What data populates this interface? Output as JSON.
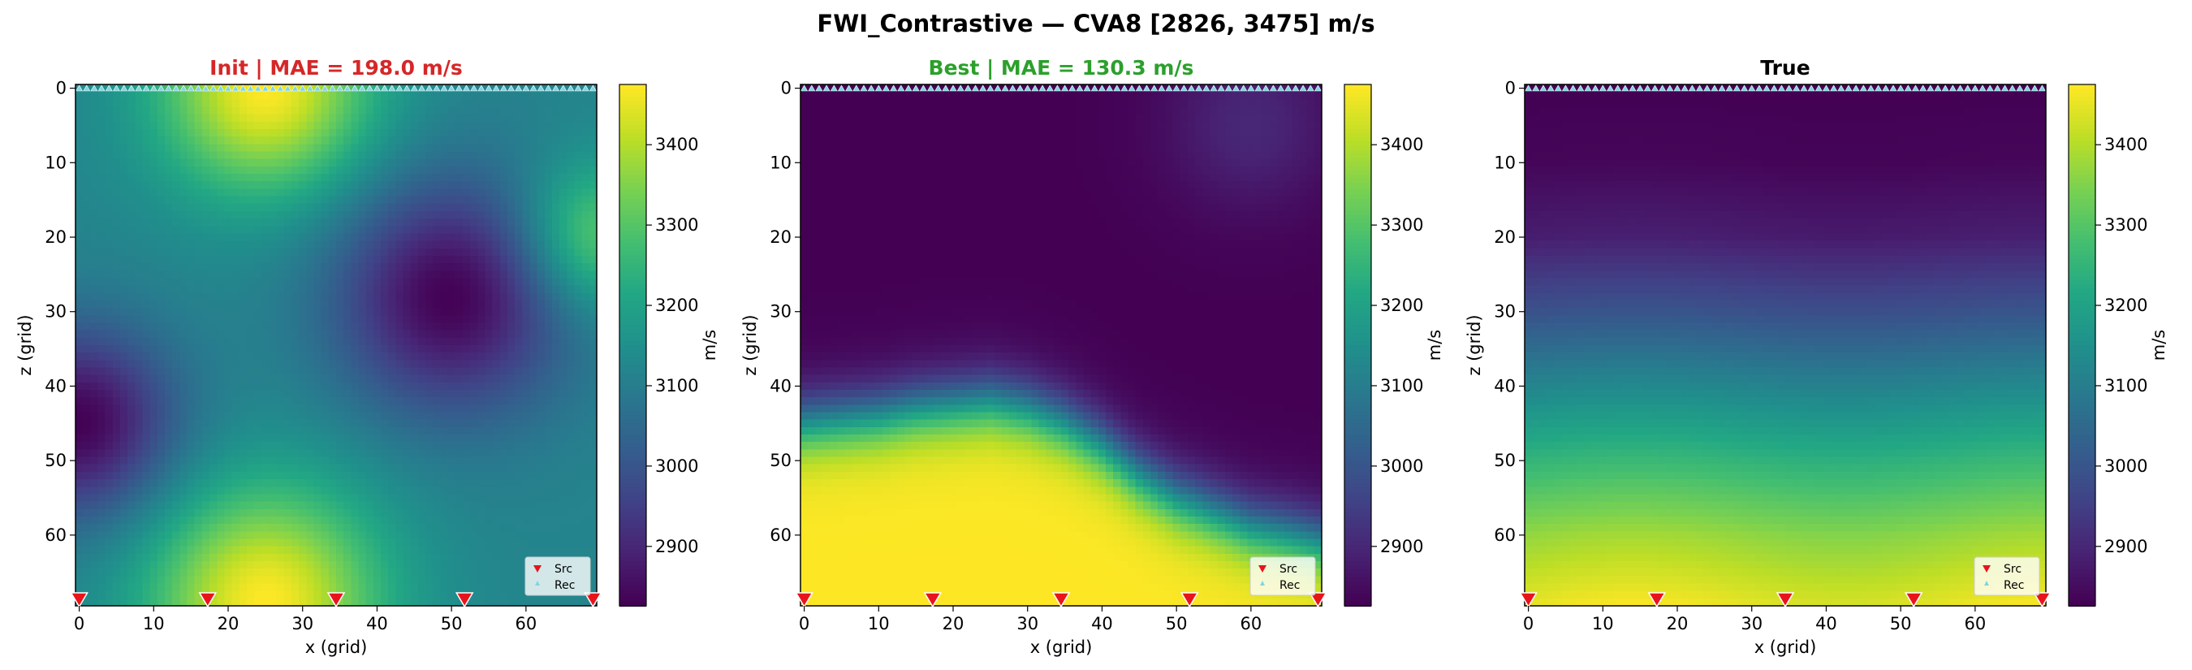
{
  "figure": {
    "suptitle": "FWI_Contrastive — CVA8 [2826, 3475] m/s"
  },
  "chart_data": [
    {
      "type": "heatmap",
      "panel": "init",
      "title": "Init  |  MAE = 198.0 m/s",
      "title_color": "#d62728",
      "xlabel": "x (grid)",
      "ylabel": "z (grid)",
      "grid_size": [
        70,
        70
      ],
      "xlim": [
        0,
        69
      ],
      "ylim": [
        69,
        0
      ],
      "xticks": [
        0,
        10,
        20,
        30,
        40,
        50,
        60
      ],
      "yticks": [
        0,
        10,
        20,
        30,
        40,
        50,
        60
      ],
      "colorbar": {
        "label": "m/s",
        "range": [
          2826,
          3475
        ],
        "ticks": [
          2900,
          3000,
          3100,
          3200,
          3300,
          3400
        ],
        "colormap": "viridis"
      },
      "field_blobs": [
        {
          "x": 25,
          "z": 0,
          "value": 3475,
          "radius": 10
        },
        {
          "x": 25,
          "z": 69,
          "value": 3475,
          "radius": 11
        },
        {
          "x": 0,
          "z": 45,
          "value": 2826,
          "radius": 9
        },
        {
          "x": 50,
          "z": 28,
          "value": 2826,
          "radius": 11
        },
        {
          "x": 69,
          "z": 20,
          "value": 3330,
          "radius": 7
        }
      ],
      "field_base": 3120,
      "sources_x": [
        0,
        17.25,
        34.5,
        51.75,
        69
      ],
      "legend": {
        "entries": [
          "Src",
          "Rec"
        ],
        "placement": "lower-right"
      }
    },
    {
      "type": "heatmap",
      "panel": "best",
      "title": "Best  |  MAE = 130.3 m/s",
      "title_color": "#2ca02c",
      "xlabel": "x (grid)",
      "ylabel": "z (grid)",
      "grid_size": [
        70,
        70
      ],
      "xlim": [
        0,
        69
      ],
      "ylim": [
        69,
        0
      ],
      "xticks": [
        0,
        10,
        20,
        30,
        40,
        50,
        60
      ],
      "yticks": [
        0,
        10,
        20,
        30,
        40,
        50,
        60
      ],
      "colorbar": {
        "label": "m/s",
        "range": [
          2826,
          3475
        ],
        "ticks": [
          2900,
          3000,
          3100,
          3200,
          3300,
          3400
        ],
        "colormap": "viridis"
      },
      "interface_depth_z": [
        45.0,
        44.5,
        44.0,
        43.0,
        42.5,
        42.0,
        43.0,
        45.0,
        48.0,
        52.0,
        55.0,
        57.0,
        59.0,
        60.0,
        61.0
      ],
      "interface_x": [
        0,
        5,
        10,
        15,
        20,
        25,
        30,
        35,
        40,
        45,
        50,
        55,
        60,
        65,
        69
      ],
      "upper_value": 2826,
      "lower_value": 3475,
      "upper_right_bump": {
        "x": 60,
        "z": 5,
        "value": 2900,
        "radius": 8
      },
      "sources_x": [
        0,
        17.25,
        34.5,
        51.75,
        69
      ],
      "legend": {
        "entries": [
          "Src",
          "Rec"
        ],
        "placement": "lower-right"
      }
    },
    {
      "type": "heatmap",
      "panel": "true",
      "title": "True",
      "title_color": "#000000",
      "xlabel": "x (grid)",
      "ylabel": "z (grid)",
      "grid_size": [
        70,
        70
      ],
      "xlim": [
        0,
        69
      ],
      "ylim": [
        69,
        0
      ],
      "xticks": [
        0,
        10,
        20,
        30,
        40,
        50,
        60
      ],
      "yticks": [
        0,
        10,
        20,
        30,
        40,
        50,
        60
      ],
      "colorbar": {
        "label": "m/s",
        "range": [
          2826,
          3475
        ],
        "ticks": [
          2900,
          3000,
          3100,
          3200,
          3300,
          3400
        ],
        "colormap": "viridis"
      },
      "depth_profile_z": [
        0,
        10,
        20,
        30,
        40,
        50,
        60,
        69
      ],
      "depth_profile_v": [
        2826,
        2835,
        2880,
        2990,
        3120,
        3250,
        3370,
        3450
      ],
      "sources_x": [
        0,
        17.25,
        34.5,
        51.75,
        69
      ],
      "legend": {
        "entries": [
          "Src",
          "Rec"
        ],
        "placement": "lower-right"
      }
    }
  ]
}
